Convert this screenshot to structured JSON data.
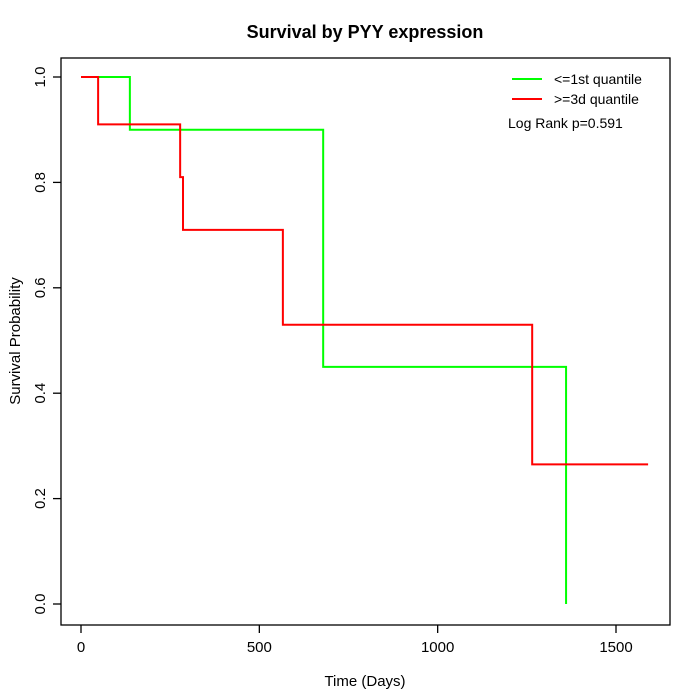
{
  "chart_data": {
    "type": "line",
    "variant": "kaplan-meier-step",
    "title": "Survival by PYY expression",
    "xlabel": "Time (Days)",
    "ylabel": "Survival Probability",
    "xticks": [
      "0",
      "500",
      "1000",
      "1500"
    ],
    "xtick_values": [
      0,
      500,
      1000,
      1500
    ],
    "yticks": [
      "0.0",
      "0.2",
      "0.4",
      "0.6",
      "0.8",
      "1.0"
    ],
    "ytick_values": [
      0.0,
      0.2,
      0.4,
      0.6,
      0.8,
      1.0
    ],
    "xlim": [
      -60,
      1655
    ],
    "ylim": [
      0.0,
      1.0
    ],
    "grid": false,
    "legend_position": "top-right",
    "annotation": "Log Rank p=0.591",
    "series": [
      {
        "name": "<=1st quantile",
        "color": "#00ff00",
        "start": [
          0,
          1.0
        ],
        "drops": [
          [
            137,
            0.9
          ],
          [
            679,
            0.45
          ],
          [
            1360,
            0.0
          ]
        ],
        "end_time": 1360
      },
      {
        "name": ">=3d quantile",
        "color": "#ff0000",
        "start": [
          0,
          1.0
        ],
        "drops": [
          [
            48,
            0.91
          ],
          [
            278,
            0.81
          ],
          [
            286,
            0.71
          ],
          [
            566,
            0.53
          ],
          [
            1265,
            0.265
          ]
        ],
        "end_time": 1590
      }
    ]
  }
}
